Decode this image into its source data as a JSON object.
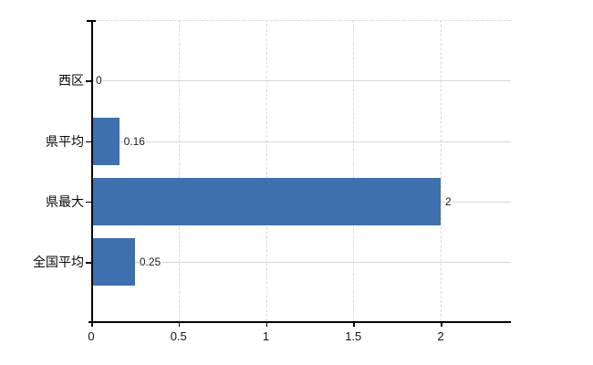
{
  "chart_data": {
    "type": "bar",
    "orientation": "horizontal",
    "categories": [
      "西区",
      "県平均",
      "県最大",
      "全国平均"
    ],
    "values": [
      0,
      0.16,
      2,
      0.25
    ],
    "data_labels": [
      "0",
      "0.16",
      "2",
      "0.25"
    ],
    "x_ticks": [
      0,
      0.5,
      1,
      1.5,
      2
    ],
    "x_tick_labels": [
      "0",
      "0.5",
      "1",
      "1.5",
      "2"
    ],
    "xlim": [
      0,
      2.4
    ],
    "bar_color": "#3e6fae",
    "axis_color": "#000000",
    "vertical_gridline_color": "#d9d9d9",
    "horizontal_gridline_color": "#d5d9d2",
    "gridline_style": {
      "vertical": "dashed",
      "horizontal": "solid",
      "plot_top_border": "dashed"
    },
    "legend": "none",
    "title": ""
  }
}
